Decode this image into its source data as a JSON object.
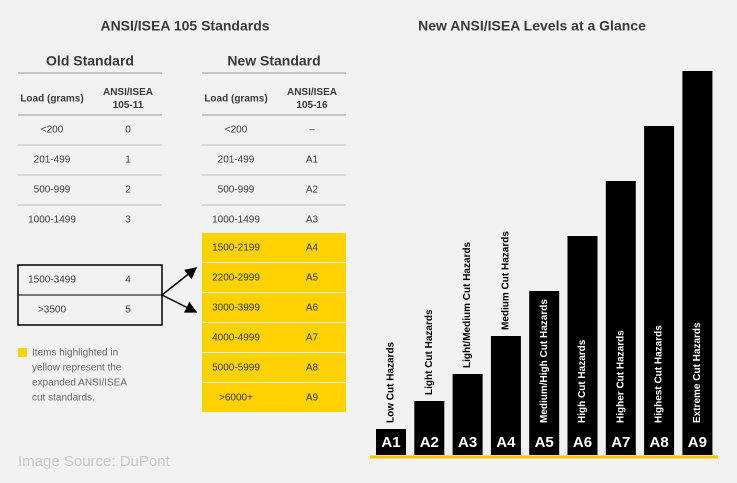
{
  "left_title": "ANSI/ISEA 105 Standards",
  "old_standard": {
    "title": "Old Standard",
    "headers": [
      [
        "Load (grams)"
      ],
      [
        "ANSI/ISEA",
        "105-11"
      ]
    ],
    "rows": [
      [
        "<200",
        "0"
      ],
      [
        "201-499",
        "1"
      ],
      [
        "500-999",
        "2"
      ],
      [
        "1000-1499",
        "3"
      ]
    ],
    "boxed_rows": [
      [
        "1500-3499",
        "4"
      ],
      [
        ">3500",
        "5"
      ]
    ]
  },
  "new_standard": {
    "title": "New Standard",
    "headers": [
      [
        "Load (grams)"
      ],
      [
        "ANSI/ISEA",
        "105-16"
      ]
    ],
    "rows": [
      [
        "<200",
        "–"
      ],
      [
        "201-499",
        "A1"
      ],
      [
        "500-999",
        "A2"
      ],
      [
        "1000-1499",
        "A3"
      ]
    ],
    "highlighted_rows": [
      [
        "1500-2199",
        "A4"
      ],
      [
        "2200-2999",
        "A5"
      ],
      [
        "3000-3999",
        "A6"
      ],
      [
        "4000-4999",
        "A7"
      ],
      [
        "5000-5999",
        "A8"
      ],
      [
        ">6000+",
        "A9"
      ]
    ]
  },
  "note": [
    "Items highlighted in",
    "yellow represent the",
    "expanded ANSI/ISEA",
    "cut standards."
  ],
  "source": "Image Source: DuPont",
  "chart_data": {
    "type": "bar",
    "title": "New ANSI/ISEA Levels at a Glance",
    "categories": [
      "A1",
      "A2",
      "A3",
      "A4",
      "A5",
      "A6",
      "A7",
      "A8",
      "A9"
    ],
    "bar_labels": [
      "Low Cut Hazards",
      "Light Cut Hazards",
      "Light/Medium Cut Hazards",
      "Medium Cut Hazards",
      "Medium/High Cut Hazards",
      "High Cut Hazards",
      "Higher Cut Hazards",
      "Highest Cut Hazards",
      "Extreme Cut Hazards"
    ],
    "values": [
      26,
      54,
      81,
      119,
      164,
      219,
      274,
      329,
      384
    ],
    "ylim": [
      0,
      400
    ],
    "color": "#000000",
    "baseline_color": "#f5c400"
  }
}
